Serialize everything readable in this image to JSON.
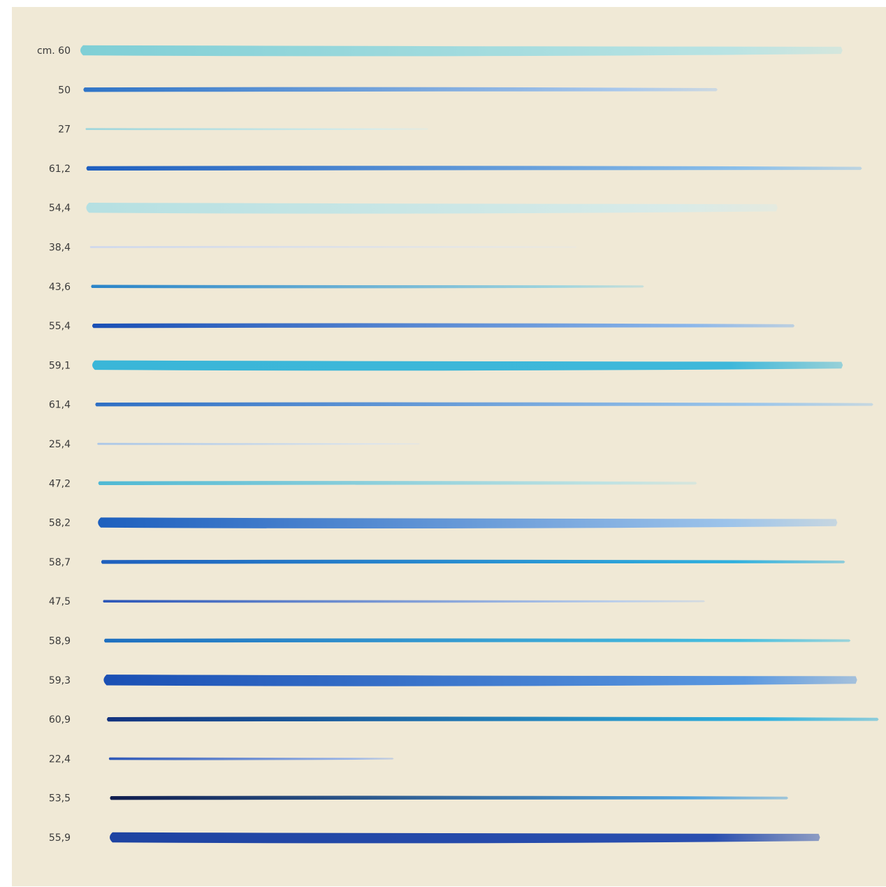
{
  "unit_label": "cm.",
  "colors": {
    "paper": "#f0e9d6",
    "label_ink": "#3a3a3a"
  },
  "strokes": [
    {
      "label": "60",
      "length_cm": 60,
      "start_color": "#7fcfd6",
      "end_color": "#b9e3e3",
      "weight": 16
    },
    {
      "label": "50",
      "length_cm": 50,
      "start_color": "#2f74c7",
      "end_color": "#a9c8ec",
      "weight": 7
    },
    {
      "label": "27",
      "length_cm": 27,
      "start_color": "#9fd6dc",
      "end_color": "#d6ecea",
      "weight": 3
    },
    {
      "label": "61,2",
      "length_cm": 61.2,
      "start_color": "#1f5fbf",
      "end_color": "#8cc0ea",
      "weight": 7
    },
    {
      "label": "54,4",
      "length_cm": 54.4,
      "start_color": "#b5e0e2",
      "end_color": "#d9ebe8",
      "weight": 16
    },
    {
      "label": "38,4",
      "length_cm": 38.4,
      "start_color": "#cfd8ec",
      "end_color": "#e6e7e6",
      "weight": 3
    },
    {
      "label": "43,6",
      "length_cm": 43.6,
      "start_color": "#2a84c8",
      "end_color": "#9fd5de",
      "weight": 5
    },
    {
      "label": "55,4",
      "length_cm": 55.4,
      "start_color": "#1a4fb5",
      "end_color": "#8ab6ea",
      "weight": 7
    },
    {
      "label": "59,1",
      "length_cm": 59.1,
      "start_color": "#3ab6d8",
      "end_color": "#3fb8da",
      "weight": 15
    },
    {
      "label": "61,4",
      "length_cm": 61.4,
      "start_color": "#2f6fc4",
      "end_color": "#9cc6ea",
      "weight": 6
    },
    {
      "label": "25,4",
      "length_cm": 25.4,
      "start_color": "#a9c6e8",
      "end_color": "#dde4ea",
      "weight": 3
    },
    {
      "label": "47,2",
      "length_cm": 47.2,
      "start_color": "#4fb9d4",
      "end_color": "#bfe2e2",
      "weight": 6
    },
    {
      "label": "58,2",
      "length_cm": 58.2,
      "start_color": "#1d5fbe",
      "end_color": "#9cc3ea",
      "weight": 16
    },
    {
      "label": "58,7",
      "length_cm": 58.7,
      "start_color": "#1f5fbd",
      "end_color": "#2fb0de",
      "weight": 6
    },
    {
      "label": "47,5",
      "length_cm": 47.5,
      "start_color": "#2c56b8",
      "end_color": "#b9cdea",
      "weight": 4
    },
    {
      "label": "58,9",
      "length_cm": 58.9,
      "start_color": "#1e6fc0",
      "end_color": "#47bfdf",
      "weight": 6
    },
    {
      "label": "59,3",
      "length_cm": 59.3,
      "start_color": "#1a4fb4",
      "end_color": "#5a98e0",
      "weight": 17
    },
    {
      "label": "60,9",
      "length_cm": 60.9,
      "start_color": "#13337f",
      "end_color": "#2fb1de",
      "weight": 7
    },
    {
      "label": "22,4",
      "length_cm": 22.4,
      "start_color": "#2d57b8",
      "end_color": "#9fb8e6",
      "weight": 4
    },
    {
      "label": "53,5",
      "length_cm": 53.5,
      "start_color": "#101d4e",
      "end_color": "#4fa2dc",
      "weight": 6
    },
    {
      "label": "55,9",
      "length_cm": 55.9,
      "start_color": "#1e43a2",
      "end_color": "#2a4fb0",
      "weight": 16
    }
  ]
}
